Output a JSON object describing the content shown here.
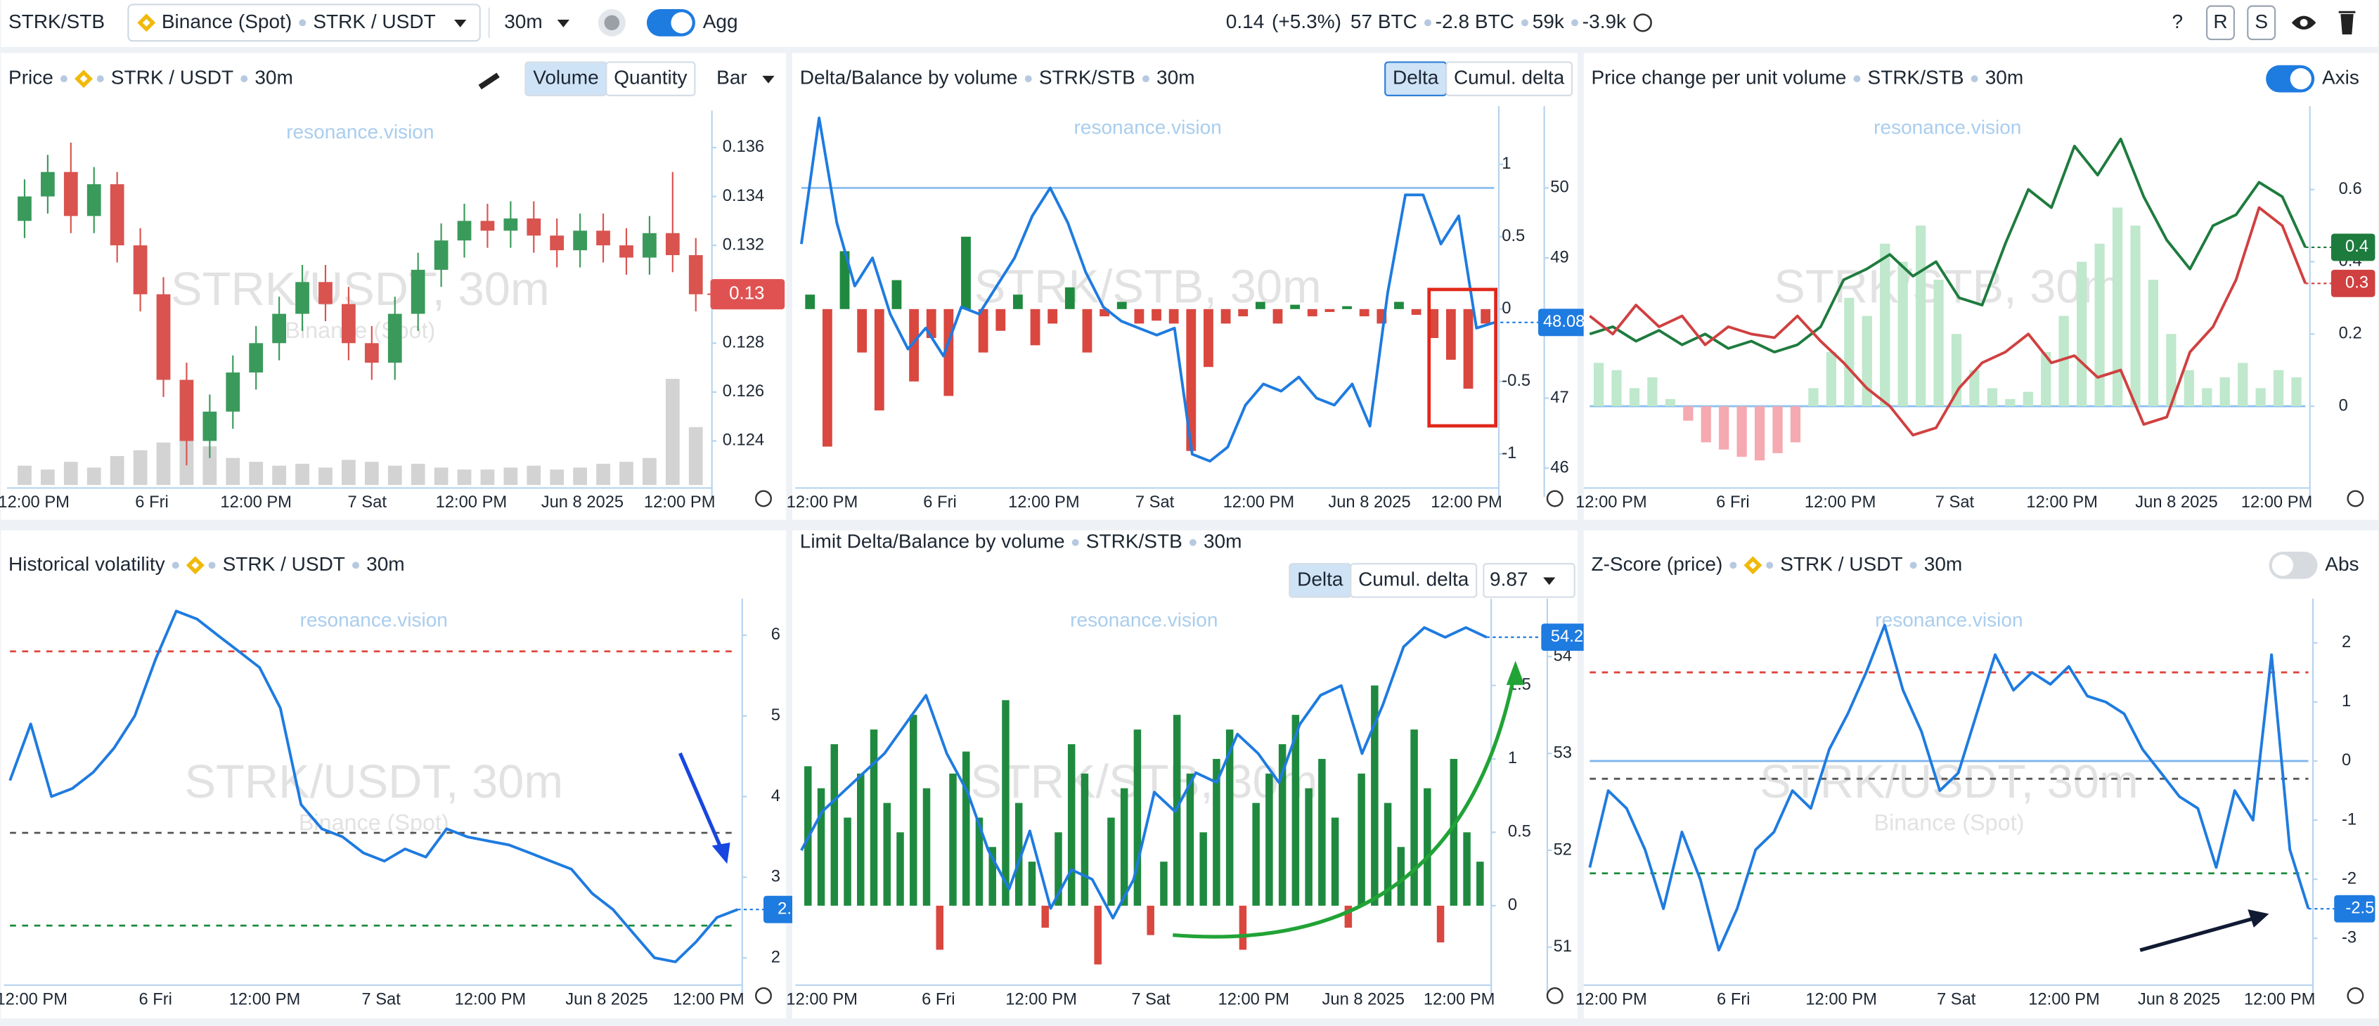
{
  "toolbar": {
    "symbol": "STRK/STB",
    "exchange": "Binance (Spot)",
    "pair": "STRK / USDT",
    "interval": "30m",
    "agg": "Agg",
    "price": "0.14",
    "change": "(+5.3%)",
    "stats": [
      "57 BTC",
      "-2.8 BTC",
      "59k",
      "-3.9k"
    ],
    "help": "?",
    "buttons": [
      "R",
      "S"
    ]
  },
  "panels": [
    {
      "title": "Price",
      "tags": [
        "STRK / USDT",
        "30m"
      ],
      "buttons": [
        "Volume",
        "Quantity"
      ],
      "active": 0,
      "dropdown": "Bar",
      "watermark": {
        "brand": "resonance.vision",
        "main": "STRK/USDT, 30m",
        "sub": "Binance (Spot)"
      },
      "xticks": [
        "12:00 PM",
        "6 Fri",
        "12:00 PM",
        "7 Sat",
        "12:00 PM",
        "Jun 8 2025",
        "12:00 PM"
      ],
      "y": {
        "ylim": [
          0.1222,
          0.1372
        ],
        "yticks": [
          0.136,
          0.134,
          0.132,
          0.13,
          0.128,
          0.126,
          0.124
        ]
      },
      "candles": [
        [
          0.133,
          0.1347,
          0.1323,
          0.134
        ],
        [
          0.134,
          0.1357,
          0.1333,
          0.135
        ],
        [
          0.135,
          0.1362,
          0.1325,
          0.1332
        ],
        [
          0.1332,
          0.1352,
          0.1325,
          0.1345
        ],
        [
          0.1345,
          0.135,
          0.1313,
          0.132
        ],
        [
          0.132,
          0.1327,
          0.1293,
          0.13
        ],
        [
          0.13,
          0.1307,
          0.1258,
          0.1265
        ],
        [
          0.1265,
          0.1272,
          0.123,
          0.124
        ],
        [
          0.124,
          0.1259,
          0.1233,
          0.1252
        ],
        [
          0.1252,
          0.1275,
          0.1245,
          0.1268
        ],
        [
          0.1268,
          0.1287,
          0.1261,
          0.128
        ],
        [
          0.128,
          0.1299,
          0.1273,
          0.1292
        ],
        [
          0.1292,
          0.1312,
          0.1285,
          0.1305
        ],
        [
          0.1305,
          0.1312,
          0.1289,
          0.1296
        ],
        [
          0.1296,
          0.1303,
          0.1273,
          0.128
        ],
        [
          0.128,
          0.1287,
          0.1265,
          0.1272
        ],
        [
          0.1272,
          0.1299,
          0.1265,
          0.1292
        ],
        [
          0.1292,
          0.1317,
          0.1285,
          0.131
        ],
        [
          0.131,
          0.1329,
          0.1303,
          0.1322
        ],
        [
          0.1322,
          0.1337,
          0.1315,
          0.133
        ],
        [
          0.133,
          0.1337,
          0.1319,
          0.1326
        ],
        [
          0.1326,
          0.1338,
          0.1319,
          0.1331
        ],
        [
          0.1331,
          0.1338,
          0.1317,
          0.1324
        ],
        [
          0.1324,
          0.1331,
          0.1311,
          0.1318
        ],
        [
          0.1318,
          0.1333,
          0.1311,
          0.1326
        ],
        [
          0.1326,
          0.1333,
          0.1313,
          0.132
        ],
        [
          0.132,
          0.1327,
          0.1308,
          0.1315
        ],
        [
          0.1315,
          0.1332,
          0.1308,
          0.1325
        ],
        [
          0.1325,
          0.135,
          0.1309,
          0.1316
        ],
        [
          0.1316,
          0.1323,
          0.1293,
          0.13
        ]
      ],
      "up_color": "#3a9a5b",
      "down_color": "#d9534f",
      "marker_color": "#e05252",
      "volume": [
        10,
        8,
        12,
        9,
        15,
        18,
        22,
        35,
        20,
        14,
        12,
        10,
        11,
        9,
        13,
        12,
        10,
        11,
        9,
        8,
        8,
        9,
        10,
        8,
        9,
        11,
        12,
        14,
        55,
        30
      ]
    },
    {
      "title": "Delta/Balance by volume",
      "tags": [
        "STRK/STB",
        "30m"
      ],
      "buttons": [
        "Delta",
        "Cumul. delta"
      ],
      "active": 0,
      "watermark": {
        "brand": "resonance.vision",
        "main": "STRK/STB, 30m"
      },
      "xticks": [
        "12:00 PM",
        "6 Fri",
        "12:00 PM",
        "7 Sat",
        "12:00 PM",
        "Jun 8 2025",
        "12:00 PM"
      ],
      "y": {
        "ylim": [
          -1.215,
          1.35
        ],
        "yticks": [
          1,
          0.5,
          0,
          -0.5,
          -1
        ]
      },
      "y2": {
        "ylim": [
          45.76,
          51.06
        ],
        "yticks": [
          50,
          49,
          48,
          47,
          46
        ]
      },
      "levels": [
        {
          "value": 50,
          "color": "#8ec0ef",
          "dash": false,
          "axis": "y2"
        }
      ],
      "bars": {
        "values": [
          0.1,
          -0.95,
          0.4,
          -0.3,
          -0.7,
          0.2,
          -0.5,
          -0.2,
          -0.6,
          0.5,
          -0.3,
          -0.15,
          0.1,
          -0.25,
          -0.1,
          0.15,
          -0.3,
          -0.05,
          0.05,
          -0.1,
          -0.08,
          -0.1,
          -0.98,
          -0.4,
          -0.1,
          -0.05,
          0.05,
          -0.1,
          0.03,
          -0.05,
          -0.02,
          0.02,
          -0.05,
          -0.1,
          0.05,
          -0.04,
          -0.2,
          -0.35,
          -0.55,
          -0.1
        ],
        "up_color": "#1f8a3f",
        "down_color": "#d9473f"
      },
      "lines": [
        {
          "color": "#1e7be0",
          "axis": "y2",
          "marker": true,
          "values": [
            49.2,
            51.0,
            49.5,
            48.6,
            49.0,
            48.2,
            47.7,
            48.0,
            47.6,
            48.3,
            48.2,
            48.6,
            49.0,
            49.6,
            50.0,
            49.5,
            48.8,
            48.3,
            48.1,
            48.0,
            47.9,
            48.0,
            46.2,
            46.1,
            46.3,
            46.9,
            47.2,
            47.1,
            47.3,
            47.0,
            46.9,
            47.2,
            46.6,
            48.5,
            49.9,
            49.9,
            49.2,
            49.6,
            48.0,
            48.08
          ]
        }
      ]
    },
    {
      "title": "Price change per unit volume",
      "tags": [
        "STRK/STB",
        "30m"
      ],
      "toggle": {
        "label": "Axis",
        "on": true
      },
      "watermark": {
        "brand": "resonance.vision",
        "main": "STRK/STB, 30m"
      },
      "xticks": [
        "12:00 PM",
        "6 Fri",
        "12:00 PM",
        "7 Sat",
        "12:00 PM",
        "Jun 8 2025",
        "12:00 PM"
      ],
      "y": {
        "ylim": [
          -0.218,
          0.81
        ],
        "yticks": [
          0.6,
          0.4,
          0.2,
          0
        ]
      },
      "levels": [
        {
          "value": 0,
          "color": "#8ec0ef",
          "dash": false,
          "axis": "y"
        }
      ],
      "bars": {
        "values": [
          0.12,
          0.1,
          0.05,
          0.08,
          0.02,
          -0.04,
          -0.1,
          -0.12,
          -0.14,
          -0.15,
          -0.13,
          -0.1,
          0.05,
          0.15,
          0.3,
          0.25,
          0.45,
          0.4,
          0.5,
          0.35,
          0.2,
          0.1,
          0.05,
          0.02,
          0.04,
          0.15,
          0.25,
          0.4,
          0.45,
          0.55,
          0.5,
          0.35,
          0.2,
          0.1,
          0.05,
          0.08,
          0.12,
          0.05,
          0.1,
          0.08
        ],
        "up_color": "#bfe8cc",
        "down_color": "#f5a9b0"
      },
      "lines": [
        {
          "color": "#1e7b3e",
          "axis": "y",
          "marker": true,
          "marker_label": "0.4",
          "values": [
            0.2,
            0.22,
            0.18,
            0.21,
            0.17,
            0.2,
            0.16,
            0.18,
            0.15,
            0.17,
            0.22,
            0.35,
            0.38,
            0.42,
            0.36,
            0.4,
            0.3,
            0.28,
            0.45,
            0.6,
            0.55,
            0.72,
            0.64,
            0.74,
            0.58,
            0.46,
            0.38,
            0.5,
            0.53,
            0.62,
            0.58,
            0.44
          ]
        },
        {
          "color": "#d04040",
          "axis": "y",
          "marker": true,
          "marker_label": "0.3",
          "values": [
            0.25,
            0.2,
            0.28,
            0.22,
            0.25,
            0.17,
            0.22,
            0.2,
            0.19,
            0.25,
            0.18,
            0.12,
            0.05,
            0,
            -0.08,
            -0.06,
            0.05,
            0.12,
            0.15,
            0.2,
            0.12,
            0.14,
            0.08,
            0.1,
            -0.05,
            -0.03,
            0.15,
            0.22,
            0.35,
            0.55,
            0.5,
            0.34
          ]
        }
      ]
    },
    {
      "title": "Historical volatility",
      "tags": [
        "STRK / USDT",
        "30m"
      ],
      "watermark": {
        "brand": "resonance.vision",
        "main": "STRK/USDT, 30m",
        "sub": "Binance (Spot)"
      },
      "xticks": [
        "12:00 PM",
        "6 Fri",
        "12:00 PM",
        "7 Sat",
        "12:00 PM",
        "Jun 8 2025",
        "12:00 PM"
      ],
      "y": {
        "ylim": [
          1.7,
          6.36
        ],
        "yticks": [
          6,
          5,
          4,
          3,
          2
        ]
      },
      "levels": [
        {
          "value": 5.8,
          "color": "#e0453a",
          "dash": true,
          "axis": "y"
        },
        {
          "value": 3.55,
          "color": "#555",
          "dash": true,
          "axis": "y"
        },
        {
          "value": 2.4,
          "color": "#1a8a3c",
          "dash": true,
          "axis": "y"
        }
      ],
      "lines": [
        {
          "color": "#1e7be0",
          "axis": "y",
          "marker": true,
          "values": [
            4.2,
            4.9,
            4.0,
            4.1,
            4.3,
            4.6,
            5.0,
            5.7,
            6.3,
            6.2,
            6.0,
            5.8,
            5.6,
            5.1,
            3.9,
            3.6,
            3.5,
            3.3,
            3.2,
            3.35,
            3.25,
            3.6,
            3.5,
            3.45,
            3.4,
            3.3,
            3.2,
            3.1,
            2.8,
            2.6,
            2.3,
            2.0,
            1.95,
            2.2,
            2.5,
            2.6
          ]
        }
      ]
    },
    {
      "title": "Limit Delta/Balance by volume",
      "tags": [
        "STRK/STB",
        "30m"
      ],
      "buttons": [
        "Delta",
        "Cumul. delta"
      ],
      "active": 0,
      "dropdown": "9.87",
      "watermark": {
        "brand": "resonance.vision",
        "main": "STRK/STB, 30m"
      },
      "xticks": [
        "12:00 PM",
        "6 Fri",
        "12:00 PM",
        "7 Sat",
        "12:00 PM",
        "Jun 8 2025",
        "12:00 PM"
      ],
      "y": {
        "ylim": [
          -0.52,
          2.04
        ],
        "yticks": [
          1.5,
          1,
          0.5,
          0
        ]
      },
      "y2": {
        "ylim": [
          50.64,
          54.52
        ],
        "yticks": [
          54,
          53,
          52,
          51
        ]
      },
      "bars": {
        "values": [
          0.95,
          0.8,
          1.1,
          0.6,
          0.9,
          1.2,
          0.7,
          0.5,
          1.3,
          0.8,
          -0.3,
          0.9,
          1.05,
          0.6,
          0.4,
          1.4,
          0.7,
          0.3,
          -0.15,
          0.5,
          1.1,
          0.9,
          -0.4,
          0.6,
          0.8,
          1.2,
          -0.2,
          0.3,
          1.3,
          0.9,
          0.5,
          1.0,
          1.2,
          -0.3,
          0.7,
          0.9,
          1.1,
          1.3,
          0.8,
          1.0,
          0.6,
          -0.15,
          0.9,
          1.5,
          0.7,
          0.4,
          1.2,
          0.8,
          -0.25,
          1.0,
          0.5,
          0.3
        ],
        "up_color": "#1f8a3f",
        "down_color": "#d9473f"
      },
      "lines": [
        {
          "color": "#1e7be0",
          "axis": "y2",
          "marker": true,
          "values": [
            52.0,
            52.4,
            52.6,
            52.8,
            53.0,
            53.3,
            53.6,
            53.0,
            52.6,
            52.0,
            51.6,
            52.2,
            51.4,
            51.8,
            51.7,
            51.3,
            51.7,
            52.6,
            52.4,
            52.8,
            52.7,
            53.2,
            53.0,
            52.7,
            53.3,
            53.6,
            53.7,
            53.0,
            53.5,
            54.1,
            54.3,
            54.2,
            54.3,
            54.2
          ]
        }
      ]
    },
    {
      "title": "Z-Score (price)",
      "tags": [
        "STRK / USDT",
        "30m"
      ],
      "toggle": {
        "label": "Abs",
        "on": false
      },
      "watermark": {
        "brand": "resonance.vision",
        "main": "STRK/USDT, 30m",
        "sub": "Binance (Spot)"
      },
      "xticks": [
        "12:00 PM",
        "6 Fri",
        "12:00 PM",
        "7 Sat",
        "12:00 PM",
        "Jun 8 2025",
        "12:00 PM"
      ],
      "y": {
        "ylim": [
          -3.74,
          2.62
        ],
        "yticks": [
          2,
          1,
          0,
          -1,
          -2,
          -3
        ]
      },
      "levels": [
        {
          "value": 1.5,
          "color": "#e0453a",
          "dash": true,
          "axis": "y"
        },
        {
          "value": 0,
          "color": "#7fb4ee",
          "dash": false,
          "axis": "y"
        },
        {
          "value": -0.3,
          "color": "#555",
          "dash": true,
          "axis": "y"
        },
        {
          "value": -1.9,
          "color": "#1a8a3c",
          "dash": true,
          "axis": "y"
        }
      ],
      "lines": [
        {
          "color": "#1e7be0",
          "axis": "y",
          "marker": true,
          "values": [
            -1.8,
            -0.5,
            -0.8,
            -1.5,
            -2.5,
            -1.2,
            -2.0,
            -3.2,
            -2.5,
            -1.5,
            -1.2,
            -0.5,
            -0.8,
            0.2,
            0.8,
            1.5,
            2.3,
            1.2,
            0.5,
            -0.5,
            -0.2,
            0.8,
            1.8,
            1.2,
            1.5,
            1.3,
            1.6,
            1.1,
            1.0,
            0.8,
            0.2,
            -0.2,
            -0.6,
            -0.8,
            -1.8,
            -0.5,
            -1.0,
            1.8,
            -1.5,
            -2.5
          ]
        }
      ]
    }
  ]
}
